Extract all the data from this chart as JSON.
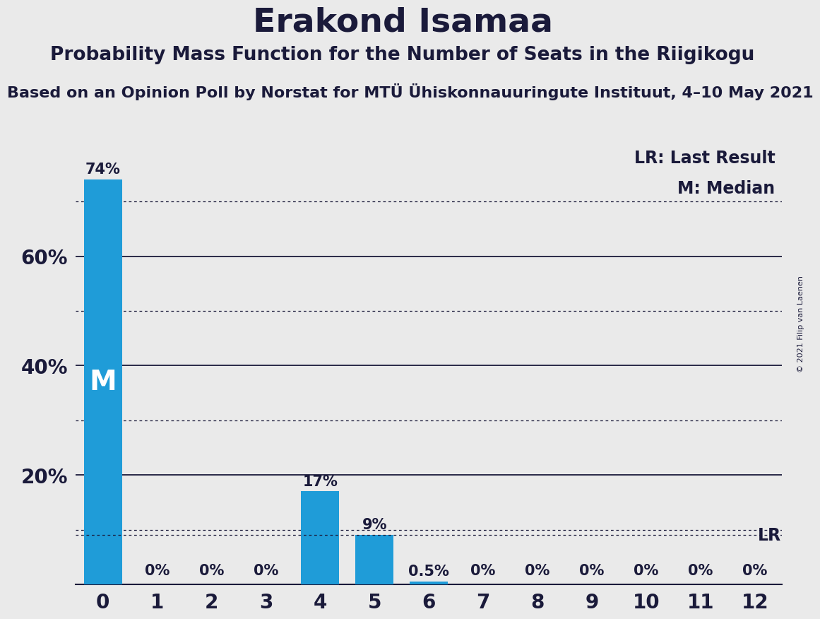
{
  "title": "Erakond Isamaa",
  "subtitle": "Probability Mass Function for the Number of Seats in the Riigikogu",
  "source_line": "Based on an Opinion Poll by Norstat for MTÜ Ühiskonnauuringute Instituut, 4–10 May 2021",
  "copyright": "© 2021 Filip van Laenen",
  "categories": [
    0,
    1,
    2,
    3,
    4,
    5,
    6,
    7,
    8,
    9,
    10,
    11,
    12
  ],
  "values": [
    0.74,
    0.0,
    0.0,
    0.0,
    0.17,
    0.09,
    0.005,
    0.0,
    0.0,
    0.0,
    0.0,
    0.0,
    0.0
  ],
  "labels": [
    "74%",
    "0%",
    "0%",
    "0%",
    "17%",
    "9%",
    "0.5%",
    "0%",
    "0%",
    "0%",
    "0%",
    "0%",
    "0%"
  ],
  "bar_color": "#1F9CD8",
  "background_color": "#EAEAEA",
  "median_bar": 0,
  "median_label": "M",
  "lr_value": 0.09,
  "lr_label": "LR",
  "ylim": [
    0,
    0.8
  ],
  "legend_lr": "LR: Last Result",
  "legend_m": "M: Median",
  "title_fontsize": 34,
  "subtitle_fontsize": 19,
  "source_fontsize": 16,
  "solid_gridlines": [
    0.2,
    0.4,
    0.6
  ],
  "dotted_gridlines": [
    0.1,
    0.3,
    0.5,
    0.7
  ],
  "yticks": [
    0.2,
    0.4,
    0.6
  ],
  "ytick_labels": [
    "20%",
    "40%",
    "60%"
  ],
  "grid_color": "#1a1a3a",
  "text_color": "#1a1a3a"
}
